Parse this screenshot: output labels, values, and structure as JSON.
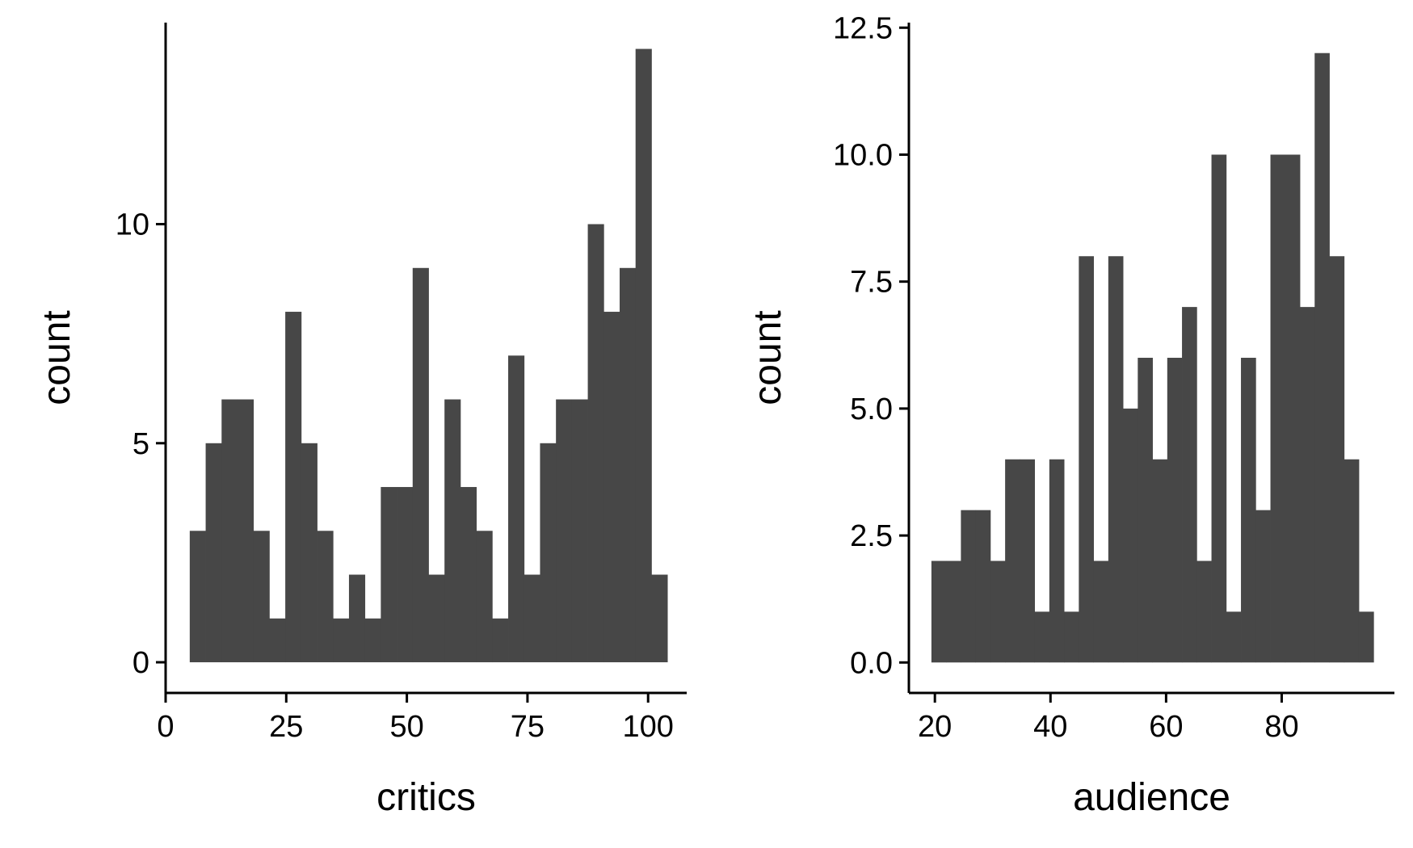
{
  "colors": {
    "bar": "#474747",
    "axis": "#000000",
    "background": "#ffffff"
  },
  "chart_data": [
    {
      "type": "bar",
      "subtype": "histogram",
      "xlabel": "critics",
      "ylabel": "count",
      "bin_width": 3.3,
      "xlim": [
        0,
        108
      ],
      "ylim": [
        -0.7,
        14.6
      ],
      "x_ticks": [
        0,
        25,
        50,
        75,
        100
      ],
      "x_tick_labels": [
        "0",
        "25",
        "50",
        "75",
        "100"
      ],
      "y_ticks": [
        0,
        5,
        10
      ],
      "y_tick_labels": [
        "0",
        "5",
        "10"
      ],
      "bin_starts": [
        5.0,
        8.3,
        11.6,
        14.9,
        18.2,
        21.5,
        24.8,
        28.1,
        31.4,
        34.7,
        38.0,
        41.3,
        44.6,
        47.9,
        51.2,
        54.5,
        57.8,
        61.1,
        64.4,
        67.7,
        71.0,
        74.3,
        77.6,
        80.9,
        84.2,
        87.5,
        90.8,
        94.1,
        97.4,
        100.7
      ],
      "values": [
        3,
        5,
        6,
        6,
        3,
        1,
        8,
        5,
        3,
        1,
        2,
        1,
        4,
        4,
        9,
        2,
        6,
        4,
        3,
        1,
        7,
        2,
        5,
        6,
        6,
        10,
        8,
        9,
        14,
        2
      ],
      "grid": false,
      "legend": "none"
    },
    {
      "type": "bar",
      "subtype": "histogram",
      "xlabel": "audience",
      "ylabel": "count",
      "bin_width": 2.55,
      "xlim": [
        15.5,
        99.5
      ],
      "ylim": [
        -0.6,
        12.6
      ],
      "x_ticks": [
        20,
        40,
        60,
        80
      ],
      "x_tick_labels": [
        "20",
        "40",
        "60",
        "80"
      ],
      "y_ticks": [
        0,
        2.5,
        5,
        7.5,
        10,
        12.5
      ],
      "y_tick_labels": [
        "0.0",
        "2.5",
        "5.0",
        "7.5",
        "10.0",
        "12.5"
      ],
      "bin_starts": [
        19.4,
        21.95,
        24.5,
        27.05,
        29.6,
        32.15,
        34.7,
        37.25,
        39.8,
        42.35,
        44.9,
        47.45,
        50.0,
        52.55,
        55.1,
        57.65,
        60.2,
        62.75,
        65.3,
        67.85,
        70.4,
        72.95,
        75.5,
        78.05,
        80.6,
        83.15,
        85.7,
        88.25,
        90.8,
        93.35
      ],
      "values": [
        2,
        2,
        3,
        3,
        2,
        4,
        4,
        1,
        4,
        1,
        8,
        2,
        8,
        5,
        6,
        4,
        6,
        7,
        2,
        10,
        1,
        6,
        3,
        10,
        10,
        7,
        12,
        8,
        4,
        1
      ],
      "grid": false,
      "legend": "none"
    }
  ]
}
